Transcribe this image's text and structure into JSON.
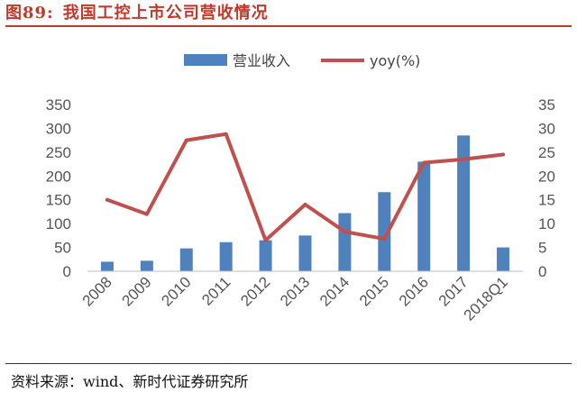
{
  "header": {
    "figure_number": "图89:",
    "title": "我国工控上市公司营收情况"
  },
  "footer": {
    "source": "资料来源：wind、新时代证券研究所"
  },
  "colors": {
    "bar": "#4f81bd",
    "line": "#c0504d",
    "title": "#c0392b"
  },
  "chart_data": {
    "type": "bar",
    "categories": [
      "2008",
      "2009",
      "2010",
      "2011",
      "2012",
      "2013",
      "2014",
      "2015",
      "2016",
      "2017",
      "2018Q1"
    ],
    "series": [
      {
        "name": "营业收入",
        "type": "bar",
        "axis": "left",
        "values": [
          20,
          22,
          48,
          61,
          65,
          75,
          122,
          166,
          230,
          285,
          50
        ]
      },
      {
        "name": "yoy(%)",
        "type": "line",
        "axis": "right",
        "values": [
          15,
          12,
          27.5,
          28.8,
          6.5,
          14,
          8.3,
          6.8,
          22.8,
          23.5,
          24.5
        ]
      }
    ],
    "y_left": {
      "ylim": [
        0,
        350
      ],
      "ticks": [
        "0",
        "50",
        "100",
        "150",
        "200",
        "250",
        "300",
        "350"
      ]
    },
    "y_right": {
      "ylim": [
        0,
        35
      ],
      "ticks": [
        "0",
        "5",
        "10",
        "15",
        "20",
        "25",
        "30",
        "35"
      ]
    },
    "grid": false,
    "legend": "top-center"
  }
}
